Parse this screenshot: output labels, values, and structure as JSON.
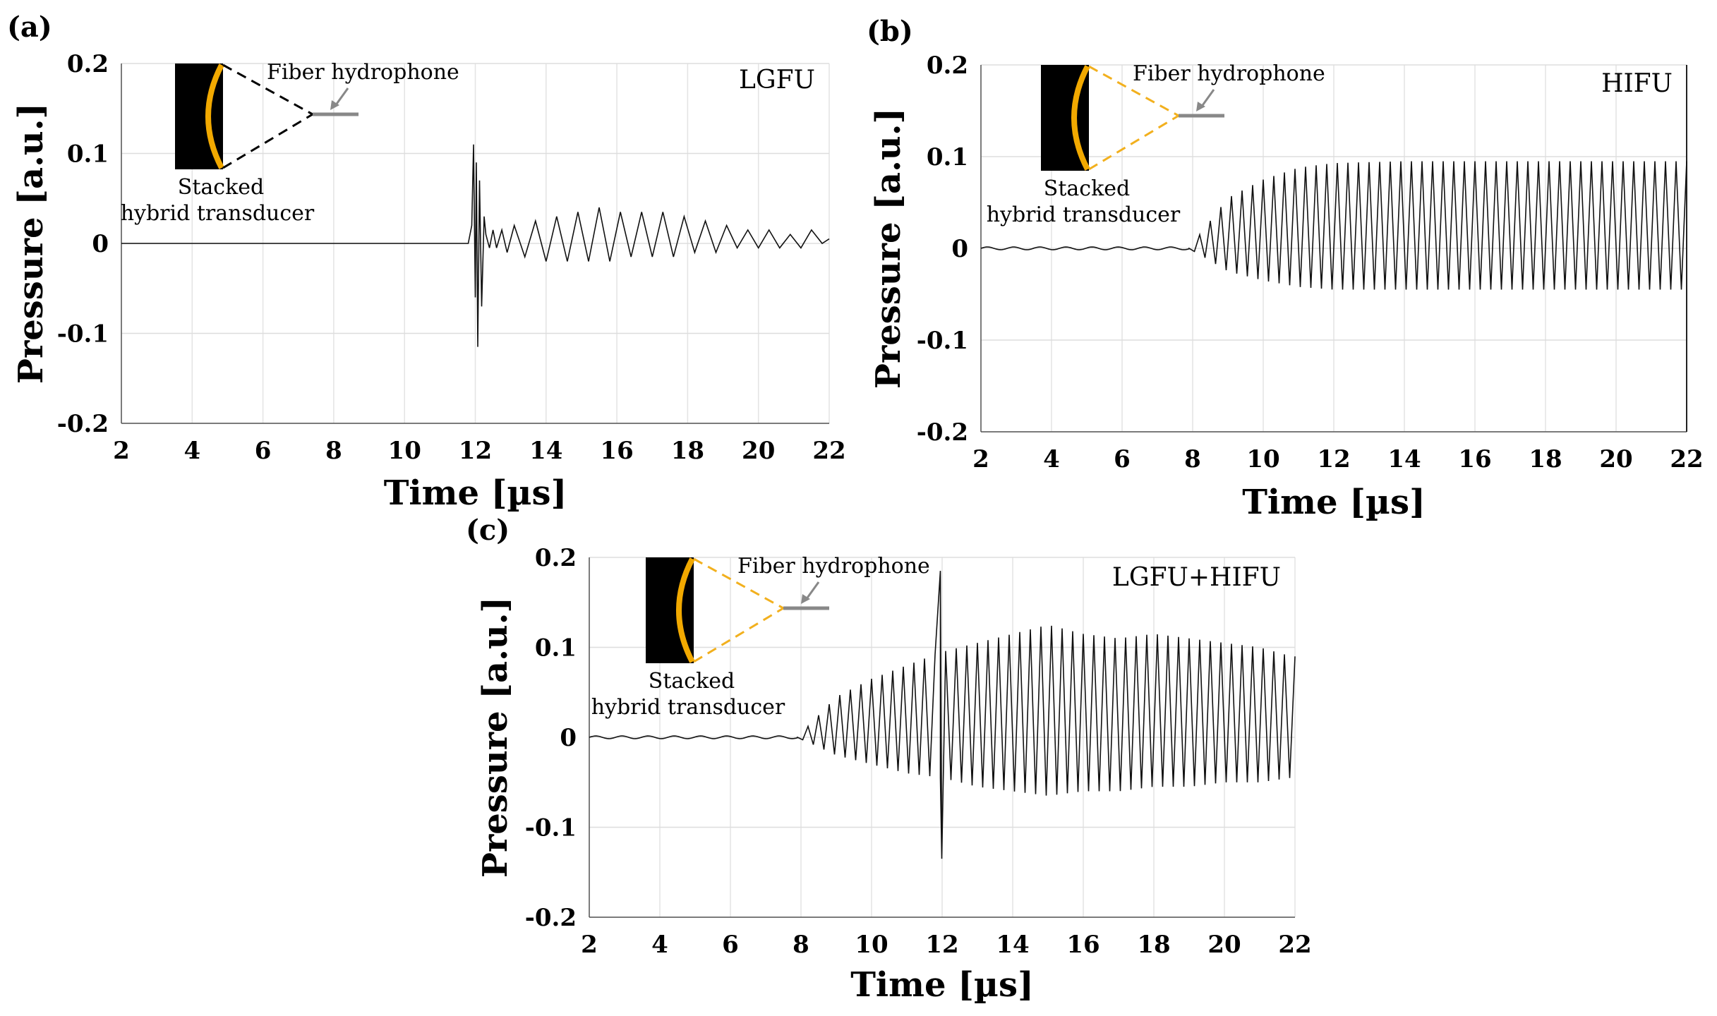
{
  "chart_data": [
    {
      "type": "line",
      "panel": "(a)",
      "label": "LGFU",
      "xlabel": "Time [µs]",
      "ylabel": "Pressure [a.u.]",
      "xlim": [
        2,
        22
      ],
      "ylim": [
        -0.2,
        0.2
      ],
      "xticks": [
        "2",
        "4",
        "6",
        "8",
        "10",
        "12",
        "14",
        "16",
        "18",
        "20",
        "22"
      ],
      "yticks": [
        "0.2",
        "0.1",
        "0",
        "-0.1",
        "-0.2"
      ],
      "grid": true,
      "inset": {
        "hydrophone": "Fiber hydrophone",
        "transducer_line1": "Stacked",
        "transducer_line2": "hybrid transducer",
        "cone_color": "#000000"
      },
      "series": [
        {
          "points": [
            [
              2,
              0
            ],
            [
              11.8,
              0
            ],
            [
              11.9,
              0.02
            ],
            [
              11.95,
              0.11
            ],
            [
              12.0,
              -0.06
            ],
            [
              12.03,
              0.09
            ],
            [
              12.07,
              -0.115
            ],
            [
              12.12,
              0.07
            ],
            [
              12.18,
              -0.07
            ],
            [
              12.25,
              0.03
            ],
            [
              12.3,
              0.01
            ],
            [
              12.4,
              -0.005
            ],
            [
              12.5,
              0.015
            ],
            [
              12.6,
              -0.005
            ],
            [
              12.75,
              0.015
            ],
            [
              12.9,
              -0.01
            ],
            [
              13.1,
              0.02
            ],
            [
              13.4,
              -0.015
            ],
            [
              13.7,
              0.025
            ],
            [
              14.0,
              -0.02
            ],
            [
              14.3,
              0.03
            ],
            [
              14.6,
              -0.02
            ],
            [
              14.9,
              0.035
            ],
            [
              15.2,
              -0.02
            ],
            [
              15.5,
              0.04
            ],
            [
              15.8,
              -0.02
            ],
            [
              16.1,
              0.035
            ],
            [
              16.4,
              -0.015
            ],
            [
              16.7,
              0.035
            ],
            [
              17.0,
              -0.015
            ],
            [
              17.3,
              0.035
            ],
            [
              17.6,
              -0.015
            ],
            [
              17.9,
              0.03
            ],
            [
              18.2,
              -0.01
            ],
            [
              18.5,
              0.025
            ],
            [
              18.8,
              -0.01
            ],
            [
              19.1,
              0.02
            ],
            [
              19.4,
              -0.005
            ],
            [
              19.7,
              0.015
            ],
            [
              20.0,
              -0.005
            ],
            [
              20.3,
              0.015
            ],
            [
              20.6,
              -0.005
            ],
            [
              20.9,
              0.01
            ],
            [
              21.2,
              -0.005
            ],
            [
              21.5,
              0.015
            ],
            [
              21.8,
              0
            ],
            [
              22,
              0.005
            ]
          ]
        }
      ]
    },
    {
      "type": "line",
      "panel": "(b)",
      "label": "HIFU",
      "xlabel": "Time [µs]",
      "ylabel": "Pressure [a.u.]",
      "xlim": [
        2,
        22
      ],
      "ylim": [
        -0.2,
        0.2
      ],
      "xticks": [
        "2",
        "4",
        "6",
        "8",
        "10",
        "12",
        "14",
        "16",
        "18",
        "20",
        "22"
      ],
      "yticks": [
        "0.2",
        "0.1",
        "0",
        "-0.1",
        "-0.2"
      ],
      "grid": true,
      "inset": {
        "hydrophone": "Fiber hydrophone",
        "transducer_line1": "Stacked",
        "transducer_line2": "hybrid transducer",
        "cone_color": "#f2b01e"
      },
      "signal": {
        "onset": 7.9,
        "start": 2,
        "end": 22,
        "period": 0.3,
        "envelope": [
          [
            7.9,
            0,
            0
          ],
          [
            9,
            0.055,
            -0.025
          ],
          [
            10,
            0.075,
            -0.035
          ],
          [
            11,
            0.088,
            -0.042
          ],
          [
            12,
            0.093,
            -0.045
          ],
          [
            14,
            0.095,
            -0.045
          ],
          [
            22,
            0.095,
            -0.045
          ]
        ]
      }
    },
    {
      "type": "line",
      "panel": "(c)",
      "label": "LGFU+HIFU",
      "xlabel": "Time [µs]",
      "ylabel": "Pressure [a.u.]",
      "xlim": [
        2,
        22
      ],
      "ylim": [
        -0.2,
        0.2
      ],
      "xticks": [
        "2",
        "4",
        "6",
        "8",
        "10",
        "12",
        "14",
        "16",
        "18",
        "20",
        "22"
      ],
      "yticks": [
        "0.2",
        "0.1",
        "0",
        "-0.1",
        "-0.2"
      ],
      "grid": true,
      "inset": {
        "hydrophone": "Fiber hydrophone",
        "transducer_line1": "Stacked",
        "transducer_line2": "hybrid transducer",
        "cone_color": "#f2b01e"
      },
      "signal": {
        "onset": 7.9,
        "start": 2,
        "end": 22,
        "period": 0.3,
        "spike": {
          "x": 11.95,
          "max": 0.185,
          "min": -0.135
        },
        "envelope": [
          [
            7.9,
            0,
            0
          ],
          [
            9,
            0.045,
            -0.02
          ],
          [
            10,
            0.065,
            -0.03
          ],
          [
            11,
            0.08,
            -0.04
          ],
          [
            12,
            0.095,
            -0.045
          ],
          [
            13,
            0.105,
            -0.055
          ],
          [
            14,
            0.115,
            -0.06
          ],
          [
            15,
            0.125,
            -0.065
          ],
          [
            16,
            0.115,
            -0.06
          ],
          [
            17,
            0.11,
            -0.06
          ],
          [
            18,
            0.115,
            -0.055
          ],
          [
            19,
            0.11,
            -0.055
          ],
          [
            20,
            0.105,
            -0.05
          ],
          [
            21,
            0.1,
            -0.05
          ],
          [
            21.9,
            0.09,
            -0.045
          ]
        ]
      }
    }
  ]
}
